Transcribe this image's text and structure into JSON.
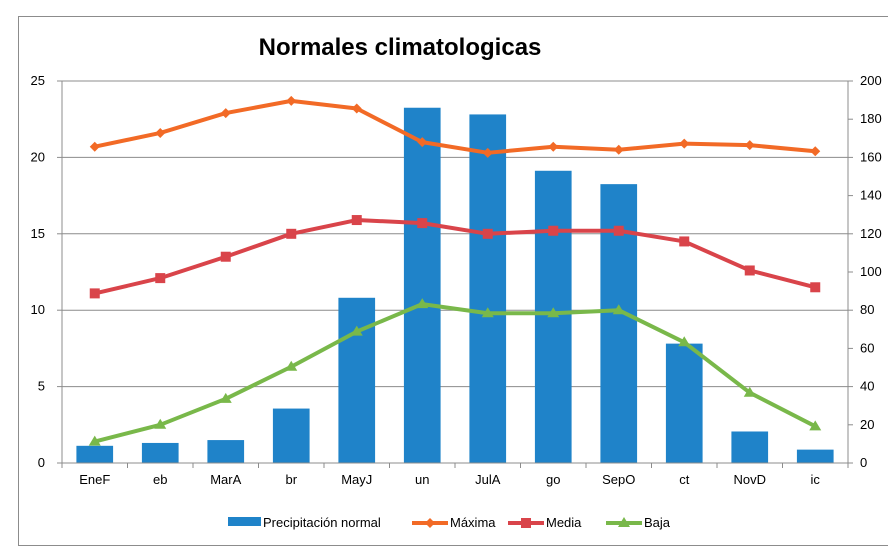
{
  "chart_data": {
    "type": "bar+line",
    "title": "Normales climatologicas",
    "categories": [
      "EneF",
      "eb",
      "MarA",
      "br",
      "MayJ",
      "un",
      "JulA",
      "go",
      "SepO",
      "ct",
      "NovD",
      "ic"
    ],
    "y_left": {
      "ticks": [
        "0",
        "5",
        "10",
        "15",
        "20",
        "25"
      ],
      "ylim": [
        0,
        25
      ]
    },
    "y_right": {
      "ticks": [
        "0",
        "20",
        "40",
        "60",
        "80",
        "100",
        "120",
        "140",
        "160",
        "180",
        "200"
      ],
      "ylim": [
        0,
        200
      ]
    },
    "grid": "horizontal",
    "legend_position": "bottom",
    "bar_series": {
      "name": "Precipitación normal",
      "axis": "right",
      "color": "#1f83c9",
      "values": [
        9,
        10.5,
        12,
        28.5,
        86.5,
        186,
        182.5,
        153,
        146,
        62.5,
        16.5,
        7
      ]
    },
    "line_series": [
      {
        "name": "Máxima",
        "axis": "left",
        "color": "#f26a26",
        "marker": "diamond",
        "values": [
          20.7,
          21.6,
          22.9,
          23.7,
          23.2,
          21.0,
          20.3,
          20.7,
          20.5,
          20.9,
          20.8,
          20.4
        ]
      },
      {
        "name": "Media",
        "axis": "left",
        "color": "#d9444a",
        "marker": "square",
        "values": [
          11.1,
          12.1,
          13.5,
          15.0,
          15.9,
          15.7,
          15.0,
          15.2,
          15.2,
          14.5,
          12.6,
          11.5
        ]
      },
      {
        "name": "Baja",
        "axis": "left",
        "color": "#79b84a",
        "marker": "triangle",
        "values": [
          1.4,
          2.5,
          4.2,
          6.3,
          8.6,
          10.4,
          9.8,
          9.8,
          10.0,
          7.9,
          4.6,
          2.4
        ]
      }
    ]
  }
}
